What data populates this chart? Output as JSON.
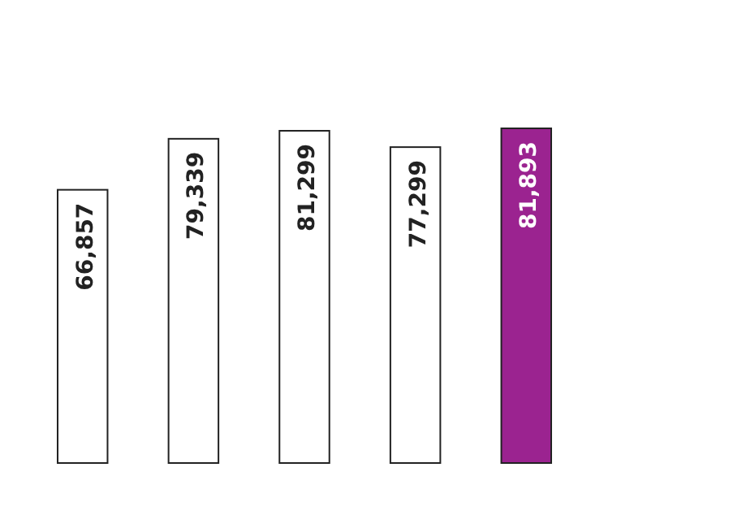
{
  "chart_data": {
    "type": "bar",
    "categories": [
      null,
      null,
      null,
      null,
      null
    ],
    "values": [
      66857,
      79339,
      81299,
      77299,
      81893
    ],
    "colors": [
      "#ffffff",
      "#ffffff",
      "#ffffff",
      "#ffffff",
      "#9b2390"
    ],
    "value_labels": [
      "66,857",
      "79,339",
      "81,299",
      "77,299",
      "81,893"
    ]
  }
}
